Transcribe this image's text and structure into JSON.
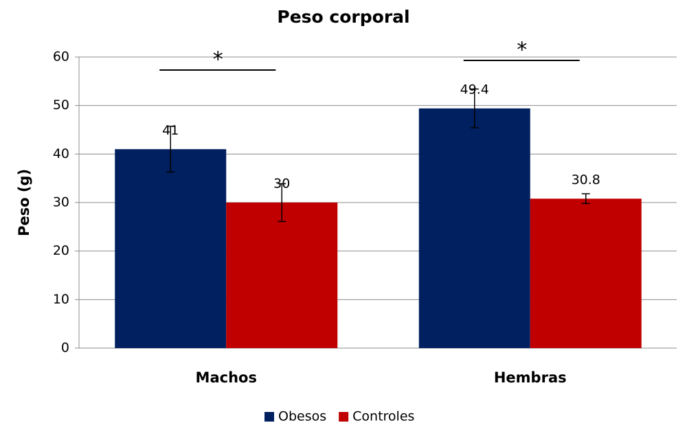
{
  "chart_data": {
    "type": "bar",
    "title": "Peso corporal",
    "y_label": "Peso (g)",
    "categories": [
      "Machos",
      "Hembras"
    ],
    "series": [
      {
        "name": "Obesos",
        "color": "#002060",
        "values": [
          41,
          49.4
        ],
        "errors": [
          4.7,
          4
        ]
      },
      {
        "name": "Controles",
        "color": "#c00000",
        "values": [
          30,
          30.8
        ],
        "errors": [
          3.9,
          1
        ]
      }
    ],
    "ylim": [
      0,
      60
    ],
    "yticks": [
      0,
      10,
      20,
      30,
      40,
      50,
      60
    ],
    "grid": true,
    "legend": "bottom",
    "annotations": [
      {
        "text": "*",
        "category": "Machos"
      },
      {
        "text": "*",
        "category": "Hembras"
      }
    ]
  }
}
